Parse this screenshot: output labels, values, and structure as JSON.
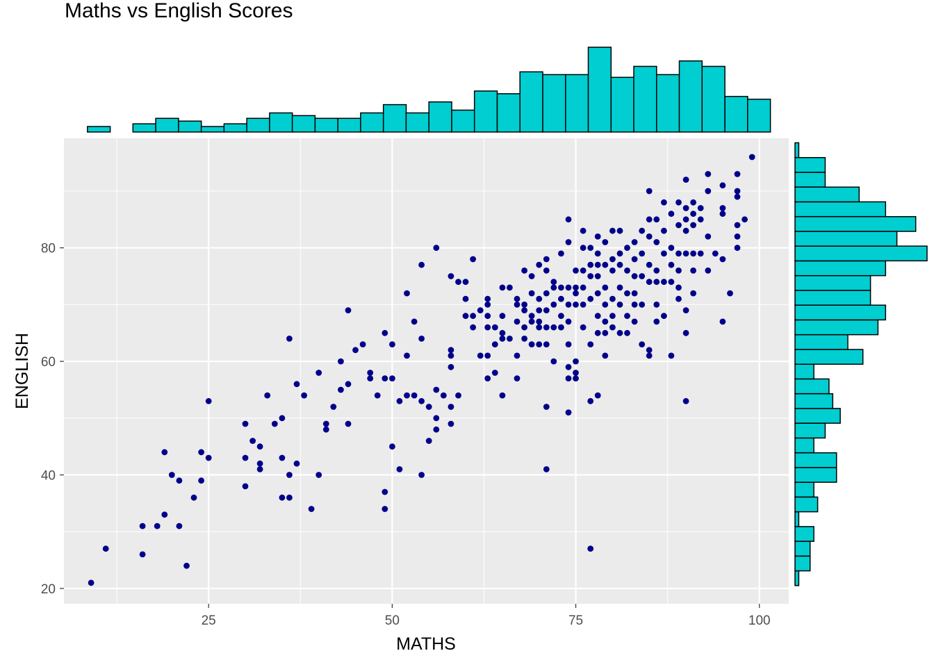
{
  "chart_data": {
    "type": "scatter",
    "title": "Maths vs English Scores",
    "xlabel": "MATHS",
    "ylabel": "ENGLISH",
    "xlim": [
      5.3,
      104
    ],
    "ylim": [
      17.3,
      99.3
    ],
    "x_ticks": [
      25,
      50,
      75,
      100
    ],
    "y_ticks": [
      20,
      40,
      60,
      80
    ],
    "grid": true,
    "colors": {
      "points": "#00008B",
      "hist_fill": "#00CED1",
      "hist_border": "#000000",
      "panel": "#EBEBEB",
      "grid": "#FFFFFF",
      "tick_text": "#4D4D4D"
    },
    "points": [
      [
        9,
        21
      ],
      [
        11,
        27
      ],
      [
        16,
        31
      ],
      [
        16,
        26
      ],
      [
        18,
        31
      ],
      [
        19,
        44
      ],
      [
        19,
        33
      ],
      [
        20,
        40
      ],
      [
        21,
        39
      ],
      [
        21,
        31
      ],
      [
        22,
        24
      ],
      [
        23,
        36
      ],
      [
        24,
        44
      ],
      [
        24,
        39
      ],
      [
        25,
        53
      ],
      [
        25,
        43
      ],
      [
        30,
        49
      ],
      [
        30,
        43
      ],
      [
        30,
        38
      ],
      [
        31,
        46
      ],
      [
        32,
        45
      ],
      [
        32,
        42
      ],
      [
        32,
        41
      ],
      [
        33,
        54
      ],
      [
        34,
        49
      ],
      [
        35,
        50
      ],
      [
        35,
        43
      ],
      [
        35,
        36
      ],
      [
        36,
        64
      ],
      [
        36,
        40
      ],
      [
        36,
        36
      ],
      [
        37,
        56
      ],
      [
        37,
        42
      ],
      [
        38,
        54
      ],
      [
        39,
        34
      ],
      [
        40,
        58
      ],
      [
        40,
        40
      ],
      [
        41,
        49
      ],
      [
        41,
        48
      ],
      [
        42,
        52
      ],
      [
        43,
        60
      ],
      [
        43,
        55
      ],
      [
        44,
        69
      ],
      [
        44,
        56
      ],
      [
        44,
        49
      ],
      [
        45,
        62
      ],
      [
        46,
        63
      ],
      [
        47,
        58
      ],
      [
        47,
        57
      ],
      [
        48,
        54
      ],
      [
        49,
        65
      ],
      [
        49,
        57
      ],
      [
        49,
        37
      ],
      [
        49,
        34
      ],
      [
        50,
        63
      ],
      [
        50,
        57
      ],
      [
        50,
        45
      ],
      [
        51,
        53
      ],
      [
        51,
        41
      ],
      [
        52,
        72
      ],
      [
        52,
        61
      ],
      [
        52,
        54
      ],
      [
        53,
        67
      ],
      [
        53,
        54
      ],
      [
        54,
        77
      ],
      [
        54,
        64
      ],
      [
        54,
        53
      ],
      [
        54,
        40
      ],
      [
        55,
        52
      ],
      [
        55,
        46
      ],
      [
        56,
        55
      ],
      [
        56,
        50
      ],
      [
        56,
        48
      ],
      [
        56,
        80
      ],
      [
        57,
        54
      ],
      [
        58,
        75
      ],
      [
        58,
        62
      ],
      [
        58,
        61
      ],
      [
        58,
        59
      ],
      [
        58,
        52
      ],
      [
        58,
        49
      ],
      [
        59,
        74
      ],
      [
        59,
        54
      ],
      [
        60,
        74
      ],
      [
        60,
        71
      ],
      [
        60,
        68
      ],
      [
        61,
        78
      ],
      [
        61,
        68
      ],
      [
        61,
        66
      ],
      [
        62,
        69
      ],
      [
        62,
        61
      ],
      [
        63,
        71
      ],
      [
        63,
        70
      ],
      [
        63,
        68
      ],
      [
        63,
        66
      ],
      [
        63,
        61
      ],
      [
        63,
        57
      ],
      [
        64,
        66
      ],
      [
        64,
        63
      ],
      [
        64,
        58
      ],
      [
        65,
        73
      ],
      [
        65,
        68
      ],
      [
        65,
        65
      ],
      [
        65,
        64
      ],
      [
        65,
        54
      ],
      [
        66,
        73
      ],
      [
        66,
        64
      ],
      [
        67,
        71
      ],
      [
        67,
        70
      ],
      [
        67,
        67
      ],
      [
        67,
        61
      ],
      [
        67,
        57
      ],
      [
        68,
        76
      ],
      [
        68,
        70
      ],
      [
        68,
        69
      ],
      [
        68,
        66
      ],
      [
        68,
        64
      ],
      [
        69,
        75
      ],
      [
        69,
        72
      ],
      [
        69,
        68
      ],
      [
        69,
        67
      ],
      [
        69,
        63
      ],
      [
        70,
        77
      ],
      [
        70,
        71
      ],
      [
        70,
        69
      ],
      [
        70,
        67
      ],
      [
        70,
        66
      ],
      [
        70,
        63
      ],
      [
        71,
        78
      ],
      [
        71,
        76
      ],
      [
        71,
        72
      ],
      [
        71,
        69
      ],
      [
        71,
        66
      ],
      [
        71,
        63
      ],
      [
        71,
        52
      ],
      [
        71,
        41
      ],
      [
        72,
        74
      ],
      [
        72,
        73
      ],
      [
        72,
        70
      ],
      [
        72,
        66
      ],
      [
        72,
        60
      ],
      [
        73,
        79
      ],
      [
        73,
        73
      ],
      [
        73,
        71
      ],
      [
        73,
        68
      ],
      [
        73,
        66
      ],
      [
        74,
        85
      ],
      [
        74,
        81
      ],
      [
        74,
        73
      ],
      [
        74,
        70
      ],
      [
        74,
        67
      ],
      [
        74,
        63
      ],
      [
        74,
        59
      ],
      [
        74,
        57
      ],
      [
        74,
        51
      ],
      [
        75,
        76
      ],
      [
        75,
        73
      ],
      [
        75,
        72
      ],
      [
        75,
        70
      ],
      [
        75,
        60
      ],
      [
        75,
        58
      ],
      [
        75,
        57
      ],
      [
        76,
        83
      ],
      [
        76,
        80
      ],
      [
        76,
        76
      ],
      [
        76,
        73
      ],
      [
        76,
        70
      ],
      [
        76,
        66
      ],
      [
        77,
        80
      ],
      [
        77,
        77
      ],
      [
        77,
        75
      ],
      [
        77,
        71
      ],
      [
        77,
        63
      ],
      [
        77,
        53
      ],
      [
        77,
        27
      ],
      [
        78,
        82
      ],
      [
        78,
        79
      ],
      [
        78,
        77
      ],
      [
        78,
        75
      ],
      [
        78,
        72
      ],
      [
        78,
        68
      ],
      [
        78,
        65
      ],
      [
        78,
        54
      ],
      [
        79,
        81
      ],
      [
        79,
        77
      ],
      [
        79,
        73
      ],
      [
        79,
        70
      ],
      [
        79,
        67
      ],
      [
        79,
        65
      ],
      [
        79,
        61
      ],
      [
        80,
        83
      ],
      [
        80,
        78
      ],
      [
        80,
        76
      ],
      [
        80,
        71
      ],
      [
        80,
        68
      ],
      [
        80,
        66
      ],
      [
        81,
        83
      ],
      [
        81,
        79
      ],
      [
        81,
        77
      ],
      [
        81,
        73
      ],
      [
        81,
        70
      ],
      [
        81,
        65
      ],
      [
        82,
        80
      ],
      [
        82,
        76
      ],
      [
        82,
        72
      ],
      [
        82,
        68
      ],
      [
        82,
        65
      ],
      [
        83,
        81
      ],
      [
        83,
        78
      ],
      [
        83,
        75
      ],
      [
        83,
        72
      ],
      [
        83,
        70
      ],
      [
        83,
        67
      ],
      [
        84,
        83
      ],
      [
        84,
        79
      ],
      [
        84,
        75
      ],
      [
        84,
        70
      ],
      [
        84,
        63
      ],
      [
        85,
        90
      ],
      [
        85,
        85
      ],
      [
        85,
        82
      ],
      [
        85,
        77
      ],
      [
        85,
        74
      ],
      [
        85,
        62
      ],
      [
        85,
        61
      ],
      [
        86,
        85
      ],
      [
        86,
        81
      ],
      [
        86,
        76
      ],
      [
        86,
        74
      ],
      [
        86,
        70
      ],
      [
        86,
        67
      ],
      [
        87,
        88
      ],
      [
        87,
        83
      ],
      [
        87,
        79
      ],
      [
        87,
        74
      ],
      [
        87,
        68
      ],
      [
        88,
        86
      ],
      [
        88,
        80
      ],
      [
        88,
        77
      ],
      [
        88,
        74
      ],
      [
        88,
        61
      ],
      [
        89,
        88
      ],
      [
        89,
        84
      ],
      [
        89,
        79
      ],
      [
        89,
        76
      ],
      [
        89,
        73
      ],
      [
        89,
        71
      ],
      [
        90,
        92
      ],
      [
        90,
        87
      ],
      [
        90,
        85
      ],
      [
        90,
        83
      ],
      [
        90,
        79
      ],
      [
        90,
        69
      ],
      [
        90,
        65
      ],
      [
        90,
        53
      ],
      [
        91,
        88
      ],
      [
        91,
        86
      ],
      [
        91,
        84
      ],
      [
        91,
        79
      ],
      [
        91,
        76
      ],
      [
        91,
        72
      ],
      [
        92,
        87
      ],
      [
        92,
        85
      ],
      [
        92,
        79
      ],
      [
        93,
        93
      ],
      [
        93,
        90
      ],
      [
        93,
        82
      ],
      [
        93,
        76
      ],
      [
        94,
        79
      ],
      [
        95,
        91
      ],
      [
        95,
        87
      ],
      [
        95,
        86
      ],
      [
        95,
        78
      ],
      [
        95,
        67
      ],
      [
        96,
        72
      ],
      [
        97,
        93
      ],
      [
        97,
        90
      ],
      [
        97,
        89
      ],
      [
        97,
        84
      ],
      [
        97,
        82
      ],
      [
        97,
        80
      ],
      [
        98,
        85
      ],
      [
        99,
        96
      ]
    ],
    "x_histogram": {
      "bin_start": 8.5,
      "bin_width": 3.1,
      "counts": [
        2,
        0,
        3,
        5,
        4,
        2,
        3,
        5,
        7,
        6,
        5,
        5,
        7,
        10,
        7,
        11,
        8,
        15,
        14,
        22,
        21,
        21,
        31,
        20,
        24,
        21,
        26,
        24,
        13,
        12
      ]
    },
    "y_histogram": {
      "bin_start": 20.5,
      "bin_width": 2.6,
      "counts": [
        1,
        4,
        4,
        5,
        1,
        6,
        5,
        11,
        11,
        5,
        8,
        12,
        10,
        9,
        5,
        18,
        14,
        22,
        24,
        20,
        20,
        24,
        35,
        27,
        32,
        24,
        17,
        8,
        8,
        1
      ]
    }
  }
}
